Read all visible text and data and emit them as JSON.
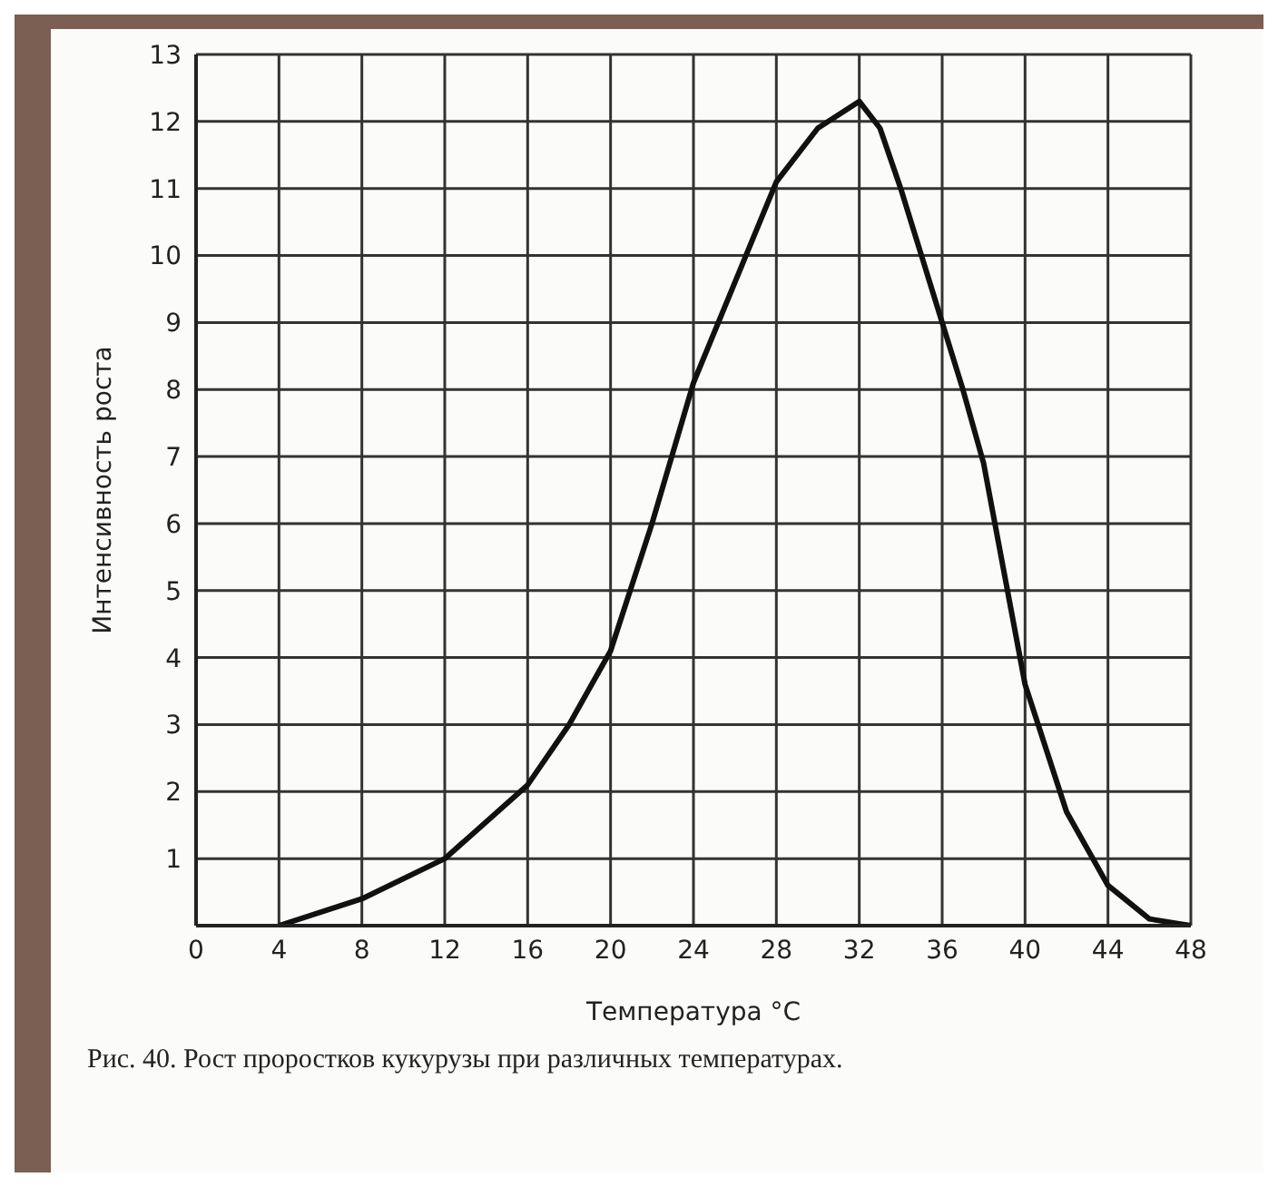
{
  "chart_data": {
    "type": "line",
    "xlabel": "Температура °C",
    "ylabel": "Интенсивность роста",
    "annotations": [
      "Рис. 40. Рост проростков кукурузы при различных температурах."
    ],
    "x": [
      4,
      8,
      12,
      16,
      18,
      20,
      22,
      24,
      26,
      28,
      30,
      32,
      33,
      34,
      36,
      37,
      38,
      40,
      42,
      44,
      46,
      48
    ],
    "series": [
      {
        "color": "#111111",
        "values": [
          0,
          0.4,
          1,
          2.1,
          3,
          4.1,
          6,
          8.1,
          9.6,
          11.1,
          11.9,
          12.3,
          11.9,
          11,
          9,
          8,
          6.9,
          3.6,
          1.7,
          0.6,
          0.1,
          0
        ]
      }
    ],
    "xlim": [
      0,
      48
    ],
    "xticks": [
      0,
      4,
      8,
      12,
      16,
      20,
      24,
      28,
      32,
      36,
      40,
      44,
      48
    ],
    "ylim": [
      0,
      13
    ],
    "yticks": [
      1,
      2,
      3,
      4,
      5,
      6,
      7,
      8,
      9,
      10,
      11,
      12,
      13
    ],
    "grid": true,
    "marker": "none",
    "line_style": "solid",
    "legend": false
  }
}
